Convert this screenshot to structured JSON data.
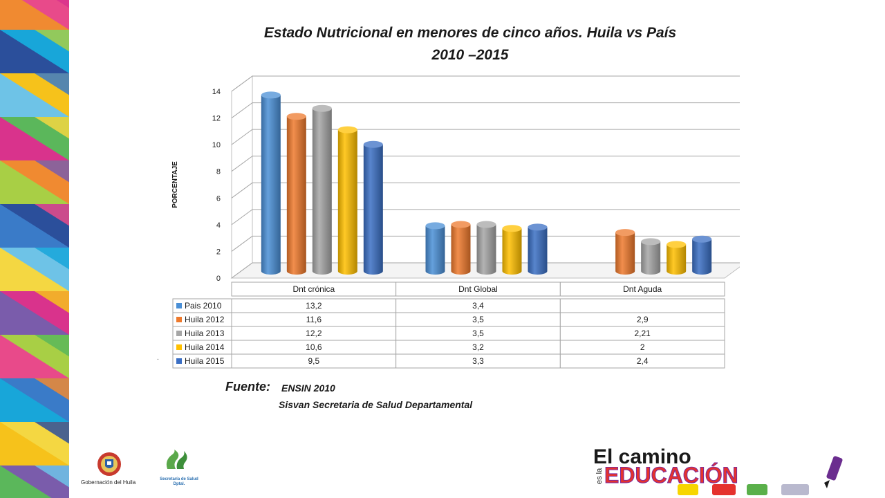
{
  "title_line1": "Estado Nutricional en menores de cinco años. Huila vs País",
  "title_line2": "2010 –2015",
  "chart_data": {
    "type": "bar",
    "title": "Estado Nutricional en menores de cinco años. Huila vs País 2010 –2015",
    "ylabel": "PORCENTAJE",
    "ylim": [
      0,
      14
    ],
    "yticks": [
      0,
      2,
      4,
      6,
      8,
      10,
      12,
      14
    ],
    "grid": true,
    "legend": "data-table-below",
    "three_d": true,
    "categories": [
      "Dnt crónica",
      "Dnt Global",
      "Dnt Aguda"
    ],
    "series": [
      {
        "name": "Pais 2010",
        "color": "#4a8fd6",
        "values": [
          13.2,
          3.4,
          null
        ],
        "labels": [
          "13,2",
          "3,4",
          ""
        ]
      },
      {
        "name": "Huila 2012",
        "color": "#ee7a2d",
        "values": [
          11.6,
          3.5,
          2.9
        ],
        "labels": [
          "11,6",
          "3,5",
          "2,9"
        ]
      },
      {
        "name": "Huila 2013",
        "color": "#a6a6a6",
        "values": [
          12.2,
          3.5,
          2.21
        ],
        "labels": [
          "12,2",
          "3,5",
          "2,21"
        ]
      },
      {
        "name": "Huila 2014",
        "color": "#ffc000",
        "values": [
          10.6,
          3.2,
          2.0
        ],
        "labels": [
          "10,6",
          "3,2",
          "2"
        ]
      },
      {
        "name": "Huila 2015",
        "color": "#3b6fc4",
        "values": [
          9.5,
          3.3,
          2.4
        ],
        "labels": [
          "9,5",
          "3,3",
          "2,4"
        ]
      }
    ]
  },
  "source": {
    "label": "Fuente:",
    "line1": "ENSIN 2010",
    "line2": "Sisvan Secretaria de Salud Departamental"
  },
  "stray_mark": ".",
  "logos": {
    "gobernacion": "Gobernación del Huila",
    "secretaria": "Secretaría de Salud Dptal.",
    "brand_line1": "El camino",
    "brand_prefix": "es la",
    "brand_line2": "EDUCACIÓN"
  }
}
